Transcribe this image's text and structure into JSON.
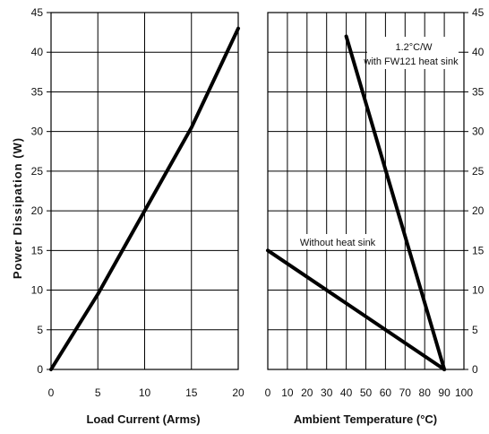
{
  "chart_data": [
    {
      "type": "line",
      "xlabel": "Load Current (Arms)",
      "ylabel": "Power Dissipation (W)",
      "xlim": [
        0,
        20
      ],
      "ylim": [
        0,
        45
      ],
      "x_ticks": [
        0,
        5,
        10,
        15,
        20
      ],
      "y_ticks": [
        0,
        5,
        10,
        15,
        20,
        25,
        30,
        35,
        40,
        45
      ],
      "grid": true,
      "series": [
        {
          "x": [
            0,
            5,
            10,
            15,
            20
          ],
          "y": [
            0,
            9.5,
            20,
            30.5,
            43
          ]
        }
      ]
    },
    {
      "type": "line",
      "xlabel": "Ambient Temperature (°C)",
      "xlim": [
        0,
        100
      ],
      "ylim": [
        0,
        45
      ],
      "x_ticks": [
        0,
        10,
        20,
        30,
        40,
        50,
        60,
        70,
        80,
        90,
        100
      ],
      "y_ticks": [
        0,
        5,
        10,
        15,
        20,
        25,
        30,
        35,
        40,
        45
      ],
      "grid": true,
      "series": [
        {
          "name": "1.2°C/W with FW121 heat sink",
          "x": [
            40,
            90
          ],
          "y": [
            42,
            0
          ]
        },
        {
          "name": "Without heat sink",
          "x": [
            0,
            90
          ],
          "y": [
            15,
            0
          ]
        }
      ],
      "annotations": [
        {
          "text_lines": [
            "1.2°C/W",
            "with FW121 heat sink"
          ]
        },
        {
          "text_lines": [
            "Without heat sink"
          ]
        }
      ]
    }
  ]
}
